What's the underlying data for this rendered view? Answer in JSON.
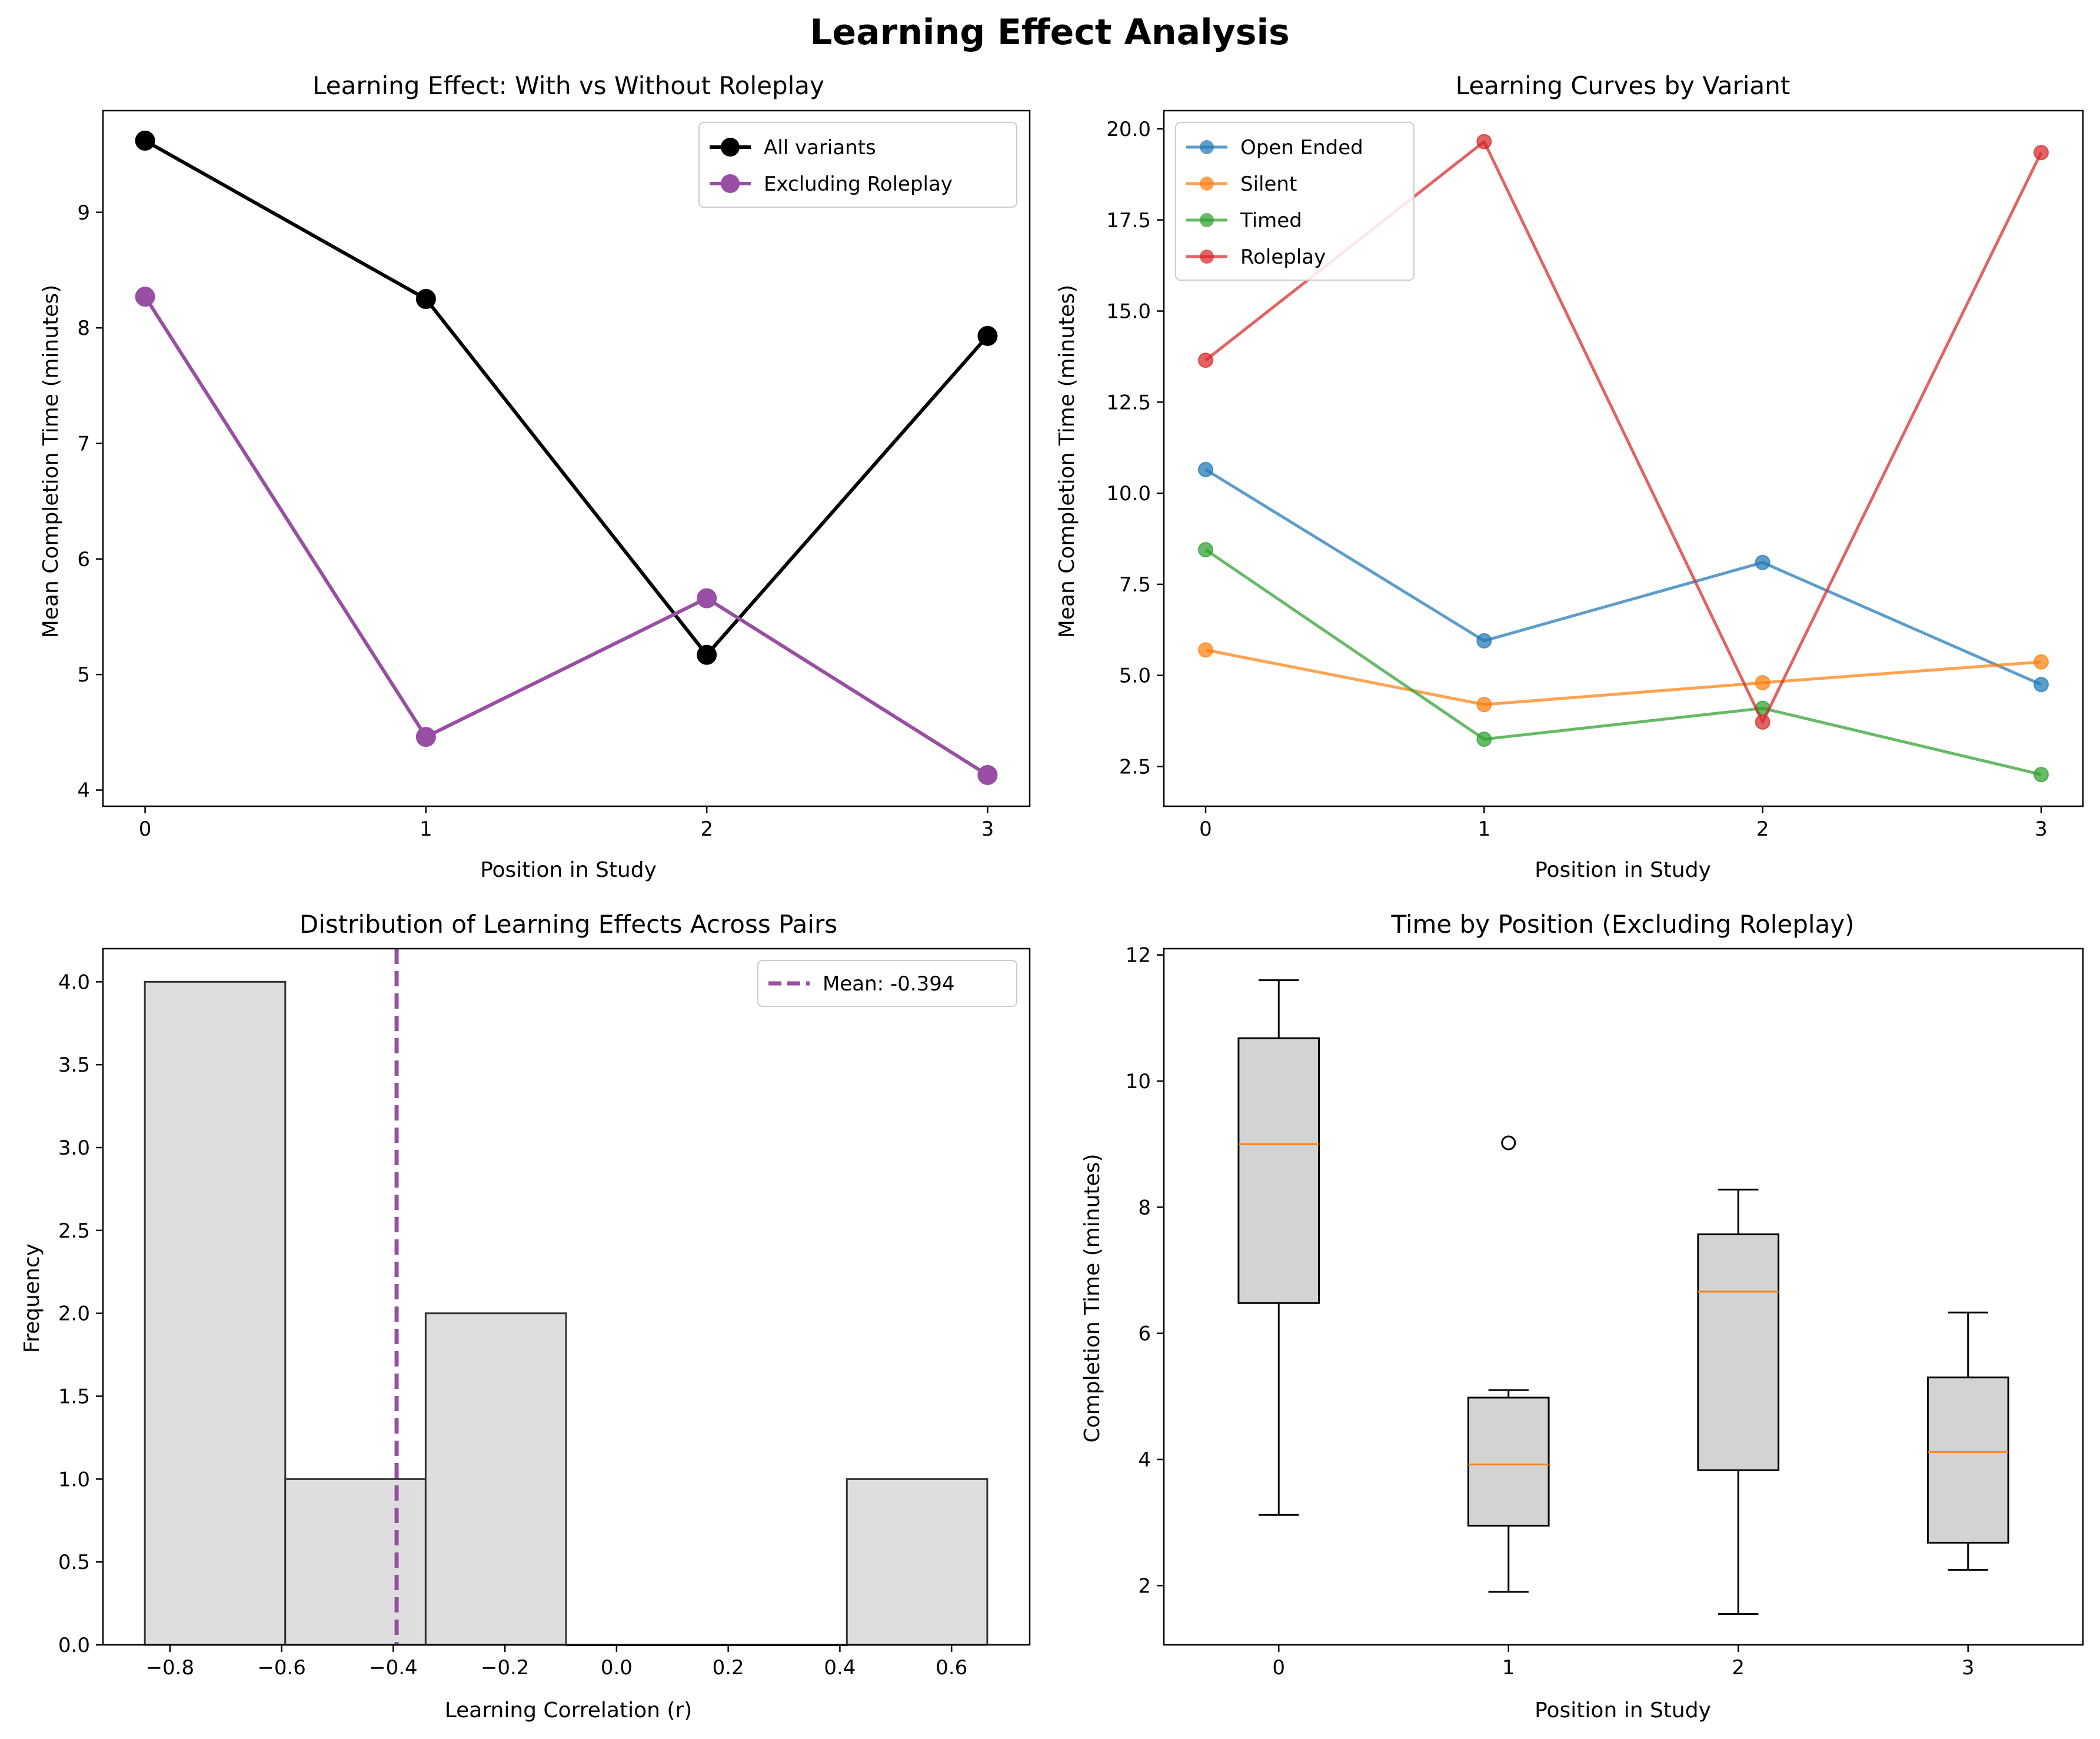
{
  "suptitle": "Learning Effect Analysis",
  "chart_data": [
    {
      "type": "line",
      "title": "Learning Effect: With vs Without Roleplay",
      "xlabel": "Position in Study",
      "ylabel": "Mean Completion Time (minutes)",
      "x": [
        0,
        1,
        2,
        3
      ],
      "xlim": [
        -0.15,
        3.15
      ],
      "ylim": [
        3.86,
        9.88
      ],
      "xticks": [
        "0",
        "1",
        "2",
        "3"
      ],
      "yticks": [
        4,
        5,
        6,
        7,
        8,
        9
      ],
      "legend": "top-right",
      "series": [
        {
          "name": "All variants",
          "values": [
            9.62,
            8.25,
            5.17,
            7.93
          ],
          "color": "#000000"
        },
        {
          "name": "Excluding Roleplay",
          "values": [
            8.27,
            4.46,
            5.66,
            4.13
          ],
          "color": "#984ea3"
        }
      ]
    },
    {
      "type": "line",
      "title": "Learning Curves by Variant",
      "xlabel": "Position in Study",
      "ylabel": "Mean Completion Time (minutes)",
      "x": [
        0,
        1,
        2,
        3
      ],
      "xlim": [
        -0.15,
        3.15
      ],
      "ylim": [
        1.41,
        20.5
      ],
      "xticks": [
        "0",
        "1",
        "2",
        "3"
      ],
      "yticks": [
        "2.5",
        "5.0",
        "7.5",
        "10.0",
        "12.5",
        "15.0",
        "17.5",
        "20.0"
      ],
      "legend": "top-left",
      "series": [
        {
          "name": "Open Ended",
          "values": [
            10.65,
            5.95,
            8.1,
            4.75
          ],
          "color": "#1f77b4"
        },
        {
          "name": "Silent",
          "values": [
            5.7,
            4.2,
            4.8,
            5.37
          ],
          "color": "#ff7f0e"
        },
        {
          "name": "Timed",
          "values": [
            8.45,
            3.25,
            4.1,
            2.28
          ],
          "color": "#2ca02c"
        },
        {
          "name": "Roleplay",
          "values": [
            13.65,
            19.65,
            3.72,
            19.35
          ],
          "color": "#d62728"
        }
      ]
    },
    {
      "type": "bar",
      "title": "Distribution of Learning Effects Across Pairs",
      "xlabel": "Learning Correlation (r)",
      "ylabel": "Frequency",
      "bin_edges": [
        -0.845,
        -0.5935,
        -0.342,
        -0.0905,
        0.161,
        0.4125,
        0.664
      ],
      "values": [
        4,
        1,
        2,
        0,
        0,
        1
      ],
      "xlim": [
        -0.92,
        0.74
      ],
      "ylim": [
        0,
        4.2
      ],
      "xticks": [
        "−0.8",
        "−0.6",
        "−0.4",
        "−0.2",
        "0.0",
        "0.2",
        "0.4",
        "0.6"
      ],
      "xtick_values": [
        -0.8,
        -0.6,
        -0.4,
        -0.2,
        0.0,
        0.2,
        0.4,
        0.6
      ],
      "yticks": [
        "0.0",
        "0.5",
        "1.0",
        "1.5",
        "2.0",
        "2.5",
        "3.0",
        "3.5",
        "4.0"
      ],
      "legend": "top-right",
      "mean_line": {
        "value": -0.394,
        "label": "Mean: -0.394",
        "color": "#984ea3"
      }
    },
    {
      "type": "box",
      "title": "Time by Position (Excluding Roleplay)",
      "xlabel": "Position in Study",
      "ylabel": "Completion Time (minutes)",
      "categories": [
        "0",
        "1",
        "2",
        "3"
      ],
      "ylim": [
        1.06,
        12.1
      ],
      "yticks": [
        2,
        4,
        6,
        8,
        10,
        12
      ],
      "boxes": [
        {
          "whisker_low": 3.12,
          "q1": 6.48,
          "median": 9.0,
          "q3": 10.68,
          "whisker_high": 11.6,
          "outliers": []
        },
        {
          "whisker_low": 1.9,
          "q1": 2.95,
          "median": 3.92,
          "q3": 4.98,
          "whisker_high": 5.1,
          "outliers": [
            9.02
          ]
        },
        {
          "whisker_low": 1.55,
          "q1": 3.83,
          "median": 6.66,
          "q3": 7.57,
          "whisker_high": 8.28,
          "outliers": []
        },
        {
          "whisker_low": 2.25,
          "q1": 2.68,
          "median": 4.12,
          "q3": 5.3,
          "whisker_high": 6.33,
          "outliers": []
        }
      ]
    }
  ]
}
